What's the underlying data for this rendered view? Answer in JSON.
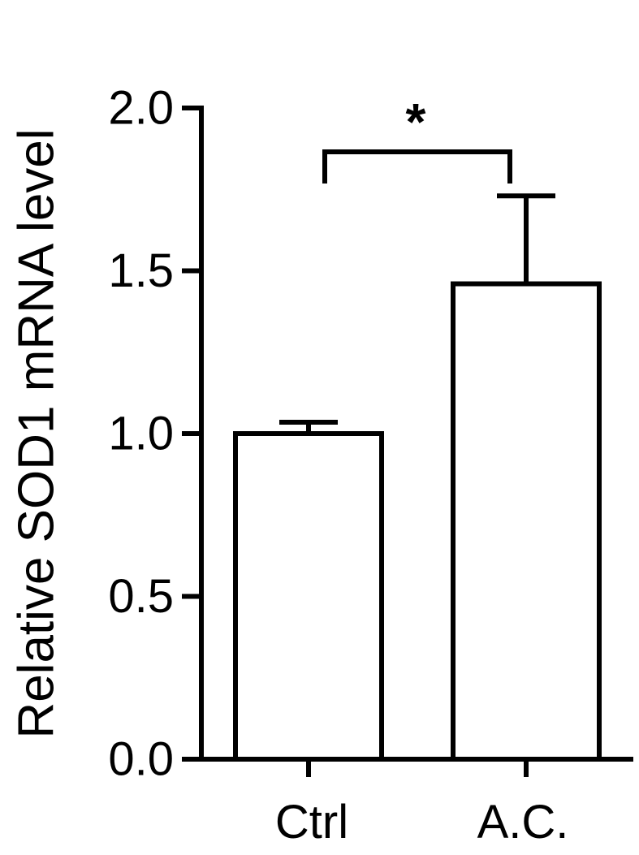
{
  "chart_data": {
    "type": "bar",
    "y_label": "Relative SOD1 mRNA level",
    "categories": [
      "Ctrl",
      "A.C."
    ],
    "values": [
      1.0,
      1.46
    ],
    "errors": [
      0.035,
      0.27
    ],
    "color": "#ffffff",
    "ylim": [
      0,
      2.0
    ],
    "yticks": [
      {
        "value": 0,
        "label": "0.0"
      },
      {
        "value": 0.5,
        "label": "0.5"
      },
      {
        "value": 1.0,
        "label": "1.0"
      },
      {
        "value": 1.5,
        "label": "1.5"
      },
      {
        "value": 2.0,
        "label": "2.0"
      }
    ],
    "annotation": "*"
  }
}
